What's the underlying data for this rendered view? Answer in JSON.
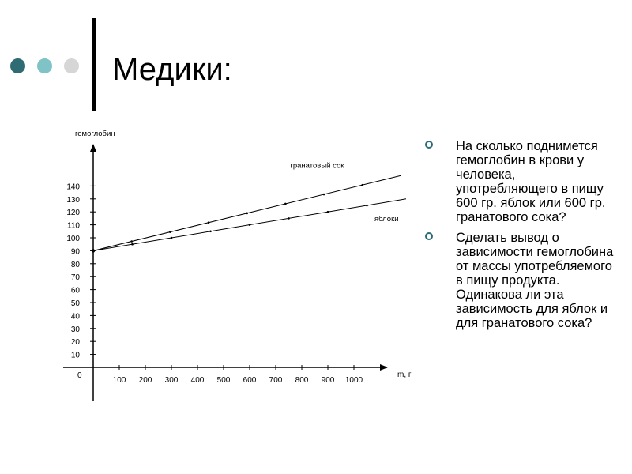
{
  "slide": {
    "title": "Медики:",
    "decor_dots": [
      {
        "name": "dot-dark-teal",
        "color": "#2e6b72"
      },
      {
        "name": "dot-light-teal",
        "color": "#7fc3c6"
      },
      {
        "name": "dot-light-gray",
        "color": "#d6d6d6"
      }
    ],
    "bullets": [
      "На сколько поднимется гемоглобин в крови у человека, употребляющего в пищу 600 гр. яблок или 600 гр. гранатового сока?",
      "Сделать вывод о зависимости гемоглобина от массы употребляемого в пищу продукта. Одинакова ли эта зависимость для яблок и для гранатового сока?"
    ],
    "bullet_color": "#2a6b78"
  },
  "chart_data": {
    "type": "line",
    "ylabel": "гемоглобин",
    "xlabel": "m, г",
    "origin_label": "0",
    "x_ticks": [
      100,
      200,
      300,
      400,
      500,
      600,
      700,
      800,
      900,
      1000
    ],
    "y_ticks": [
      10,
      20,
      30,
      40,
      50,
      60,
      70,
      80,
      90,
      100,
      110,
      120,
      130,
      140
    ],
    "xlim": [
      0,
      1100
    ],
    "ylim": [
      0,
      165
    ],
    "series": [
      {
        "name": "гранатовый сок",
        "points": [
          [
            0,
            90
          ],
          [
            1180,
            148
          ]
        ]
      },
      {
        "name": "яблоки",
        "points": [
          [
            0,
            90
          ],
          [
            1200,
            130
          ]
        ]
      }
    ]
  }
}
